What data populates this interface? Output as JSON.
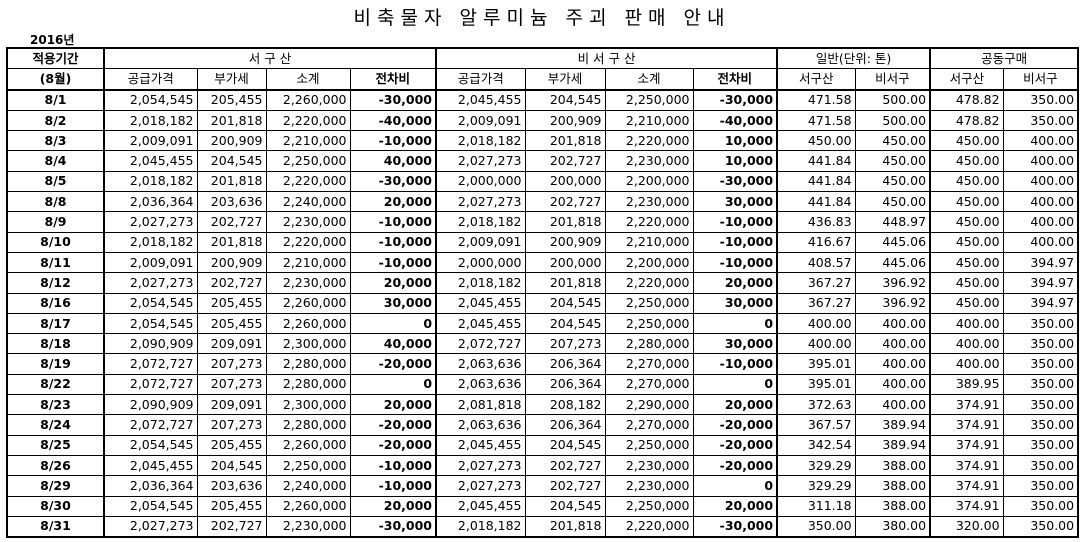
{
  "title": "비축물자 알루미늄 주괴 판매 안내",
  "year": "2016년",
  "table": {
    "header": {
      "row1": [
        "적용기간",
        "서 구 산",
        "비 서 구 산",
        "일반(단위: 톤)",
        "공동구매"
      ],
      "row2": [
        "(8월)",
        "공급가격",
        "부가세",
        "소계",
        "전차비",
        "공급가격",
        "부가세",
        "소계",
        "전차비",
        "서구산",
        "비서구",
        "서구산",
        "비서구"
      ]
    },
    "rows": [
      [
        "8/1",
        "2,054,545",
        "205,455",
        "2,260,000",
        "-30,000",
        "2,045,455",
        "204,545",
        "2,250,000",
        "-30,000",
        "471.58",
        "500.00",
        "478.82",
        "350.00"
      ],
      [
        "8/2",
        "2,018,182",
        "201,818",
        "2,220,000",
        "-40,000",
        "2,009,091",
        "200,909",
        "2,210,000",
        "-40,000",
        "471.58",
        "500.00",
        "478.82",
        "350.00"
      ],
      [
        "8/3",
        "2,009,091",
        "200,909",
        "2,210,000",
        "-10,000",
        "2,018,182",
        "201,818",
        "2,220,000",
        "10,000",
        "450.00",
        "450.00",
        "450.00",
        "400.00"
      ],
      [
        "8/4",
        "2,045,455",
        "204,545",
        "2,250,000",
        "40,000",
        "2,027,273",
        "202,727",
        "2,230,000",
        "10,000",
        "441.84",
        "450.00",
        "450.00",
        "400.00"
      ],
      [
        "8/5",
        "2,018,182",
        "201,818",
        "2,220,000",
        "-30,000",
        "2,000,000",
        "200,000",
        "2,200,000",
        "-30,000",
        "441.84",
        "450.00",
        "450.00",
        "400.00"
      ],
      [
        "8/8",
        "2,036,364",
        "203,636",
        "2,240,000",
        "20,000",
        "2,027,273",
        "202,727",
        "2,230,000",
        "30,000",
        "441.84",
        "450.00",
        "450.00",
        "400.00"
      ],
      [
        "8/9",
        "2,027,273",
        "202,727",
        "2,230,000",
        "-10,000",
        "2,018,182",
        "201,818",
        "2,220,000",
        "-10,000",
        "436.83",
        "448.97",
        "450.00",
        "400.00"
      ],
      [
        "8/10",
        "2,018,182",
        "201,818",
        "2,220,000",
        "-10,000",
        "2,009,091",
        "200,909",
        "2,210,000",
        "-10,000",
        "416.67",
        "445.06",
        "450.00",
        "400.00"
      ],
      [
        "8/11",
        "2,009,091",
        "200,909",
        "2,210,000",
        "-10,000",
        "2,000,000",
        "200,000",
        "2,200,000",
        "-10,000",
        "408.57",
        "445.06",
        "450.00",
        "394.97"
      ],
      [
        "8/12",
        "2,027,273",
        "202,727",
        "2,230,000",
        "20,000",
        "2,018,182",
        "201,818",
        "2,220,000",
        "20,000",
        "367.27",
        "396.92",
        "450.00",
        "394.97"
      ],
      [
        "8/16",
        "2,054,545",
        "205,455",
        "2,260,000",
        "30,000",
        "2,045,455",
        "204,545",
        "2,250,000",
        "30,000",
        "367.27",
        "396.92",
        "450.00",
        "394.97"
      ],
      [
        "8/17",
        "2,054,545",
        "205,455",
        "2,260,000",
        "0",
        "2,045,455",
        "204,545",
        "2,250,000",
        "0",
        "400.00",
        "400.00",
        "400.00",
        "350.00"
      ],
      [
        "8/18",
        "2,090,909",
        "209,091",
        "2,300,000",
        "40,000",
        "2,072,727",
        "207,273",
        "2,280,000",
        "30,000",
        "400.00",
        "400.00",
        "400.00",
        "350.00"
      ],
      [
        "8/19",
        "2,072,727",
        "207,273",
        "2,280,000",
        "-20,000",
        "2,063,636",
        "206,364",
        "2,270,000",
        "-10,000",
        "395.01",
        "400.00",
        "400.00",
        "350.00"
      ],
      [
        "8/22",
        "2,072,727",
        "207,273",
        "2,280,000",
        "0",
        "2,063,636",
        "206,364",
        "2,270,000",
        "0",
        "395.01",
        "400.00",
        "389.95",
        "350.00"
      ],
      [
        "8/23",
        "2,090,909",
        "209,091",
        "2,300,000",
        "20,000",
        "2,081,818",
        "208,182",
        "2,290,000",
        "20,000",
        "372.63",
        "400.00",
        "374.91",
        "350.00"
      ],
      [
        "8/24",
        "2,072,727",
        "207,273",
        "2,280,000",
        "-20,000",
        "2,063,636",
        "206,364",
        "2,270,000",
        "-20,000",
        "367.57",
        "389.94",
        "374.91",
        "350.00"
      ],
      [
        "8/25",
        "2,054,545",
        "205,455",
        "2,260,000",
        "-20,000",
        "2,045,455",
        "204,545",
        "2,250,000",
        "-20,000",
        "342.54",
        "389.94",
        "374.91",
        "350.00"
      ],
      [
        "8/26",
        "2,045,455",
        "204,545",
        "2,250,000",
        "-10,000",
        "2,027,273",
        "202,727",
        "2,230,000",
        "-20,000",
        "329.29",
        "388.00",
        "374.91",
        "350.00"
      ],
      [
        "8/29",
        "2,036,364",
        "203,636",
        "2,240,000",
        "-10,000",
        "2,027,273",
        "202,727",
        "2,230,000",
        "0",
        "329.29",
        "388.00",
        "374.91",
        "350.00"
      ],
      [
        "8/30",
        "2,054,545",
        "205,455",
        "2,260,000",
        "20,000",
        "2,045,455",
        "204,545",
        "2,250,000",
        "20,000",
        "311.18",
        "388.00",
        "374.91",
        "350.00"
      ],
      [
        "8/31",
        "2,027,273",
        "202,727",
        "2,230,000",
        "-30,000",
        "2,018,182",
        "201,818",
        "2,220,000",
        "-30,000",
        "350.00",
        "380.00",
        "320.00",
        "350.00"
      ]
    ]
  }
}
